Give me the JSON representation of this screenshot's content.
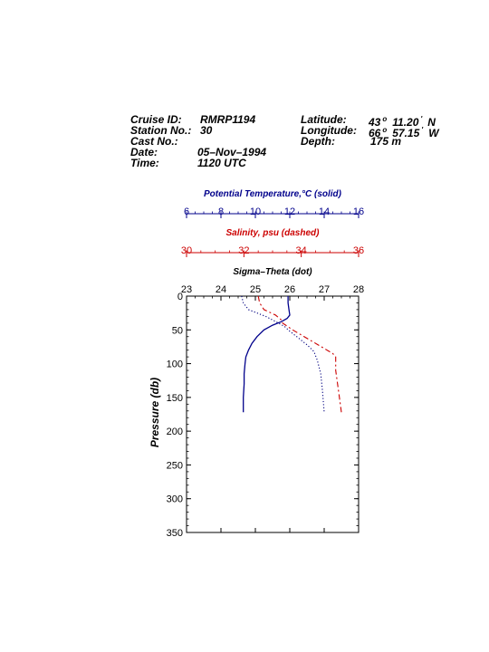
{
  "header": {
    "cruise_label": "Cruise ID:",
    "cruise_value": "RMRP1194",
    "station_label": "Station No.:",
    "station_value": "30",
    "cast_label": "Cast No.:",
    "cast_value": "",
    "date_label": "Date:",
    "date_value": "05–Nov–1994",
    "time_label": "Time:",
    "time_value": "1120 UTC",
    "lat_label": "Latitude:",
    "lat_deg": "43",
    "lat_min": "11.20",
    "lat_hemi": "N",
    "lon_label": "Longitude:",
    "lon_deg": "66",
    "lon_min": "57.15",
    "lon_hemi": "W",
    "depth_label": "Depth:",
    "depth_value": "175 m",
    "degree_mark": "o",
    "minute_mark": "'"
  },
  "chart_data": {
    "type": "line",
    "ylabel": "Pressure (db)",
    "ylim": [
      0,
      350
    ],
    "y_ticks": [
      0,
      50,
      100,
      150,
      200,
      250,
      300,
      350
    ],
    "y_inverted": true,
    "axes": [
      {
        "key": "temp",
        "title": "Potential Temperature,°C (solid)",
        "range": [
          6,
          16
        ],
        "ticks": [
          6,
          8,
          10,
          12,
          14,
          16
        ],
        "color": "#00008b"
      },
      {
        "key": "sal",
        "title": "Salinity, psu  (dashed)",
        "range": [
          30,
          36
        ],
        "ticks": [
          30,
          32,
          34,
          36
        ],
        "color": "#cc0000"
      },
      {
        "key": "sigma",
        "title": "Sigma–Theta (dot)",
        "range": [
          23,
          28
        ],
        "ticks": [
          23,
          24,
          25,
          26,
          27,
          28
        ],
        "color": "#000000"
      }
    ],
    "series": [
      {
        "axis": "temp",
        "style": "solid",
        "color": "#00008b",
        "points": [
          [
            11.9,
            0
          ],
          [
            11.9,
            10
          ],
          [
            11.95,
            20
          ],
          [
            12.0,
            28
          ],
          [
            11.85,
            33
          ],
          [
            11.5,
            38
          ],
          [
            11.0,
            43
          ],
          [
            10.5,
            50
          ],
          [
            10.1,
            60
          ],
          [
            9.8,
            70
          ],
          [
            9.6,
            80
          ],
          [
            9.45,
            90
          ],
          [
            9.4,
            100
          ],
          [
            9.35,
            115
          ],
          [
            9.35,
            130
          ],
          [
            9.3,
            150
          ],
          [
            9.3,
            172
          ]
        ]
      },
      {
        "axis": "sal",
        "style": "dashed",
        "color": "#cc0000",
        "points": [
          [
            32.5,
            0
          ],
          [
            32.55,
            10
          ],
          [
            32.7,
            20
          ],
          [
            33.1,
            28
          ],
          [
            33.3,
            35
          ],
          [
            33.35,
            40
          ],
          [
            33.7,
            50
          ],
          [
            34.3,
            65
          ],
          [
            34.7,
            75
          ],
          [
            35.1,
            85
          ],
          [
            35.2,
            90
          ],
          [
            35.2,
            110
          ],
          [
            35.3,
            140
          ],
          [
            35.4,
            172
          ]
        ]
      },
      {
        "axis": "sigma",
        "style": "dot",
        "color": "#000080",
        "points": [
          [
            24.6,
            0
          ],
          [
            24.65,
            10
          ],
          [
            24.8,
            20
          ],
          [
            25.3,
            30
          ],
          [
            25.6,
            38
          ],
          [
            25.85,
            45
          ],
          [
            26.0,
            52
          ],
          [
            26.25,
            62
          ],
          [
            26.5,
            72
          ],
          [
            26.7,
            82
          ],
          [
            26.8,
            95
          ],
          [
            26.9,
            115
          ],
          [
            26.95,
            140
          ],
          [
            27.0,
            172
          ]
        ]
      }
    ]
  }
}
